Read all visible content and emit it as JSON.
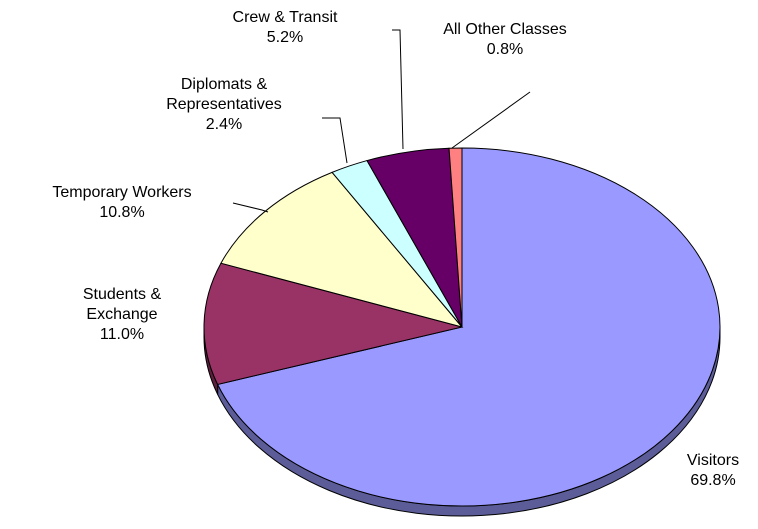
{
  "chart_data": {
    "type": "pie",
    "categories": [
      "Visitors",
      "Students & Exchange",
      "Temporary Workers",
      "Diplomats & Representatives",
      "Crew & Transit",
      "All Other Classes"
    ],
    "values": [
      69.8,
      11.0,
      10.8,
      2.4,
      5.2,
      0.8
    ],
    "value_labels": [
      "69.8%",
      "11.0%",
      "10.8%",
      "2.4%",
      "5.2%",
      "0.8%"
    ],
    "colors": [
      "#9999ff",
      "#993366",
      "#ffffcc",
      "#ccffff",
      "#660066",
      "#ff8080"
    ]
  }
}
